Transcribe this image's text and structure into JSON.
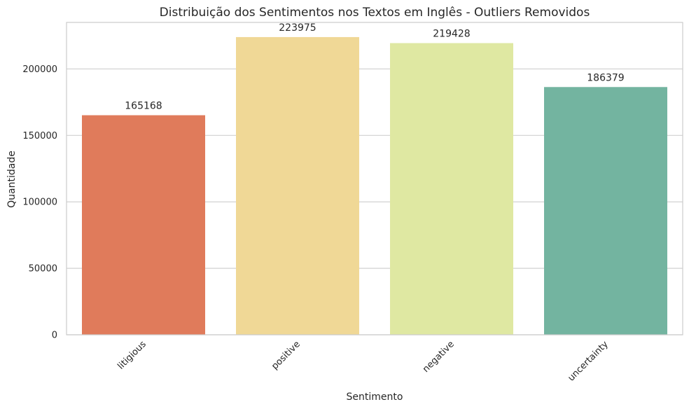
{
  "chart_data": {
    "type": "bar",
    "title": "Distribuição dos Sentimentos nos Textos em Inglês - Outliers Removidos",
    "xlabel": "Sentimento",
    "ylabel": "Quantidade",
    "categories": [
      "litigious",
      "positive",
      "negative",
      "uncertainty"
    ],
    "values": [
      165168,
      223975,
      219428,
      186379
    ],
    "data_labels": [
      "165168",
      "223975",
      "219428",
      "186379"
    ],
    "colors": [
      "#e07b5b",
      "#f0d896",
      "#dfe8a2",
      "#73b4a0"
    ],
    "ylim": [
      0,
      235000
    ],
    "yticks": [
      0,
      50000,
      100000,
      150000,
      200000
    ],
    "ytick_labels": [
      "0",
      "50000",
      "100000",
      "150000",
      "200000"
    ],
    "grid": true,
    "grid_axis": "y"
  }
}
